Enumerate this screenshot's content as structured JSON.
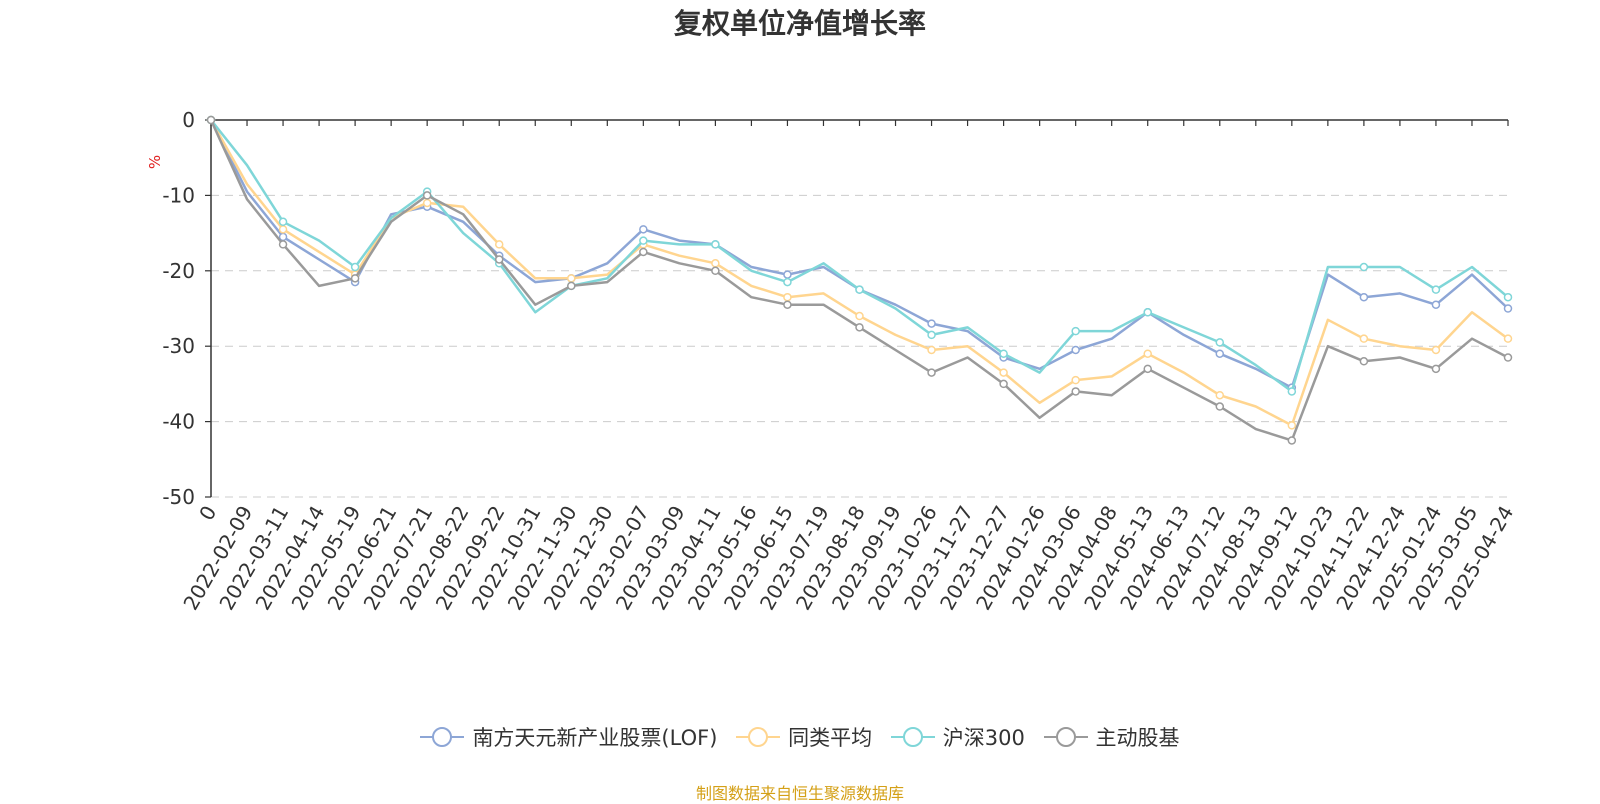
{
  "chart_data": {
    "type": "line",
    "title": "复权单位净值增长率",
    "ylabel": "%",
    "ylim": [
      -50,
      0
    ],
    "yticks": [
      0,
      -10,
      -20,
      -30,
      -40,
      -50
    ],
    "grid": "horizontal dashed",
    "legend_position": "bottom",
    "x_tick_labels": [
      "0",
      "2022-02-09",
      "2022-03-11",
      "2022-04-14",
      "2022-05-19",
      "2022-06-21",
      "2022-07-21",
      "2022-08-22",
      "2022-09-22",
      "2022-10-31",
      "2022-11-30",
      "2022-12-30",
      "2023-02-07",
      "2023-03-09",
      "2023-04-11",
      "2023-05-16",
      "2023-06-15",
      "2023-07-19",
      "2023-08-18",
      "2023-09-19",
      "2023-10-26",
      "2023-11-27",
      "2023-12-27",
      "2024-01-26",
      "2024-03-06",
      "2024-04-08",
      "2024-05-13",
      "2024-06-13",
      "2024-07-12",
      "2024-08-13",
      "2024-09-12",
      "2024-10-23",
      "2024-11-22",
      "2024-12-24",
      "2025-01-24",
      "2025-03-05",
      "2025-04-24"
    ],
    "x": [
      "0",
      "2022-02-09",
      "2022-03-11",
      "2022-04-14",
      "2022-05-19",
      "2022-06-21",
      "2022-07-21",
      "2022-08-22",
      "2022-09-22",
      "2022-10-31",
      "2022-11-30",
      "2022-12-30",
      "2023-02-07",
      "2023-03-09",
      "2023-04-11",
      "2023-05-16",
      "2023-06-15",
      "2023-07-19",
      "2023-08-18",
      "2023-09-19",
      "2023-10-26",
      "2023-11-27",
      "2023-12-27",
      "2024-01-26",
      "2024-03-06",
      "2024-04-08",
      "2024-05-13",
      "2024-06-13",
      "2024-07-12",
      "2024-08-13",
      "2024-09-12",
      "2024-10-23",
      "2024-11-22",
      "2024-12-24",
      "2025-01-24",
      "2025-03-05",
      "2025-04-24"
    ],
    "series": [
      {
        "name": "南方天元新产业股票(LOF)",
        "color": "#8da6d6",
        "values": [
          0,
          -9.5,
          -15.5,
          -18.5,
          -21.5,
          -12.5,
          -11.5,
          -13.5,
          -18.0,
          -21.5,
          -21.0,
          -19.0,
          -14.5,
          -16.0,
          -16.5,
          -19.5,
          -20.5,
          -19.5,
          -22.5,
          -24.5,
          -27.0,
          -28.0,
          -31.5,
          -33.0,
          -30.5,
          -29.0,
          -25.5,
          -28.5,
          -31.0,
          -33.0,
          -35.5,
          -20.5,
          -23.5,
          -23.0,
          -24.5,
          -20.5,
          -25.0
        ]
      },
      {
        "name": "同类平均",
        "color": "#ffd58f",
        "values": [
          0,
          -8.5,
          -14.5,
          -17.5,
          -20.5,
          -13.0,
          -11.0,
          -11.5,
          -16.5,
          -21.0,
          -21.0,
          -20.5,
          -16.5,
          -18.0,
          -19.0,
          -22.0,
          -23.5,
          -23.0,
          -26.0,
          -28.5,
          -30.5,
          -30.0,
          -33.5,
          -37.5,
          -34.5,
          -34.0,
          -31.0,
          -33.5,
          -36.5,
          -38.0,
          -40.5,
          -26.5,
          -29.0,
          -30.0,
          -30.5,
          -25.5,
          -29.0
        ]
      },
      {
        "name": "沪深300",
        "color": "#7fd6d8",
        "values": [
          0,
          -6.0,
          -13.5,
          -16.0,
          -19.5,
          -13.0,
          -9.5,
          -15.0,
          -19.0,
          -25.5,
          -22.0,
          -21.0,
          -16.0,
          -16.5,
          -16.5,
          -20.0,
          -21.5,
          -19.0,
          -22.5,
          -25.0,
          -28.5,
          -27.5,
          -31.0,
          -33.5,
          -28.0,
          -28.0,
          -25.5,
          -27.5,
          -29.5,
          -32.5,
          -36.0,
          -19.5,
          -19.5,
          -19.5,
          -22.5,
          -19.5,
          -23.5
        ]
      },
      {
        "name": "主动股基",
        "color": "#9a9a9a",
        "values": [
          0,
          -10.5,
          -16.5,
          -22.0,
          -21.0,
          -13.5,
          -10.0,
          -12.5,
          -18.5,
          -24.5,
          -22.0,
          -21.5,
          -17.5,
          -19.0,
          -20.0,
          -23.5,
          -24.5,
          -24.5,
          -27.5,
          -30.5,
          -33.5,
          -31.5,
          -35.0,
          -39.5,
          -36.0,
          -36.5,
          -33.0,
          -35.5,
          -38.0,
          -41.0,
          -42.5,
          -30.0,
          -32.0,
          -31.5,
          -33.0,
          -29.0,
          -31.5
        ]
      }
    ]
  },
  "legend": {
    "items": [
      {
        "label": "南方天元新产业股票(LOF)",
        "color": "#8da6d6"
      },
      {
        "label": "同类平均",
        "color": "#ffd58f"
      },
      {
        "label": "沪深300",
        "color": "#7fd6d8"
      },
      {
        "label": "主动股基",
        "color": "#9a9a9a"
      }
    ]
  },
  "source": {
    "text": "制图数据来自恒生聚源数据库",
    "color": "#d4a017"
  },
  "colors": {
    "axis": "#333333",
    "grid": "#cccccc",
    "unit_label": "#e02020",
    "title": "#333333"
  }
}
